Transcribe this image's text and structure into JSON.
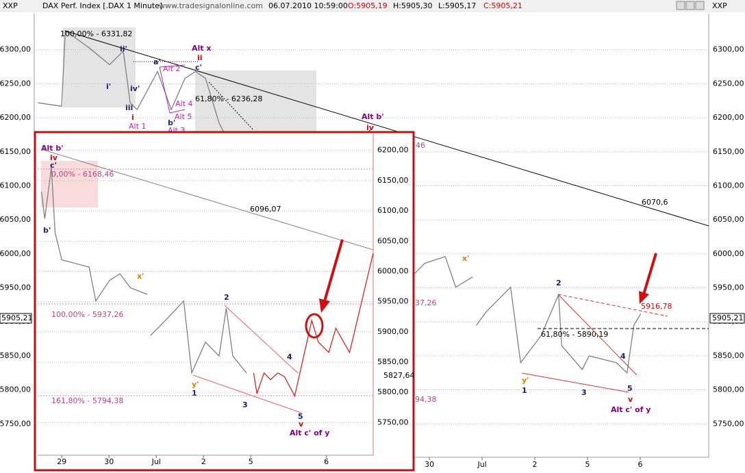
{
  "header": {
    "symbol": "XXP",
    "instrument": "DAX Perf. Index [.DAX  1 Minute]",
    "source": "www.tradesignalonline.com",
    "datetime": "06.07.2010 10:59:00",
    "open": "O:5905,19",
    "high": "H:5905,30",
    "low": "L:5905,17",
    "close": "C:5905,21"
  },
  "chart_data": [
    {
      "type": "line",
      "grid": true,
      "current_price": "5905,21",
      "xlim": [
        -7.5,
        5.3
      ],
      "ylim": [
        5701,
        6353
      ],
      "xticks": [
        {
          "value": 0,
          "label": "30"
        },
        {
          "value": 1,
          "label": "Jul"
        },
        {
          "value": 2,
          "label": "2"
        },
        {
          "value": 3,
          "label": "5"
        },
        {
          "value": 4,
          "label": "6"
        }
      ],
      "yticks": [
        {
          "value": 6300,
          "label": "6300,00"
        },
        {
          "value": 6250,
          "label": "6250,00"
        },
        {
          "value": 6200,
          "label": "6200,00"
        },
        {
          "value": 6150,
          "label": "6150,00"
        },
        {
          "value": 6100,
          "label": "6100,00"
        },
        {
          "value": 6050,
          "label": "6050,00"
        },
        {
          "value": 6000,
          "label": "6000,00"
        },
        {
          "value": 5950,
          "label": "5950,00"
        },
        {
          "value": 5900,
          "label": "5900,00"
        },
        {
          "value": 5850,
          "label": "5850,00"
        },
        {
          "value": 5800,
          "label": "5800,00"
        },
        {
          "value": 5750,
          "label": "5750,00"
        }
      ],
      "series": [
        {
          "color": "#7f7f7f",
          "x": [
            -7.43,
            -6.98,
            -6.91,
            -6.46,
            -6.07,
            -5.81,
            -5.68,
            -5.55,
            -5.16,
            -4.9,
            -4.64,
            -4.44,
            -4.25,
            -3.99,
            -3.86,
            -2.3,
            -1.13,
            -0.61,
            -0.28,
            -0.09,
            0.3,
            0.5,
            0.82,
            0.85,
            0.89,
            1.08,
            1.54,
            1.73,
            2.12,
            2.45,
            2.51,
            2.9,
            3.03,
            3.55,
            3.75,
            3.88,
            4.01
          ],
          "values": [
            6222,
            6217,
            6328,
            6303,
            6278,
            6298,
            6222,
            6212,
            6268,
            6212,
            6258,
            6268,
            6258,
            6192,
            6172,
            6071,
            6182,
            6041,
            5971,
            5986,
            5996,
            5951,
            5966,
            null,
            5895,
            5915,
            5951,
            5840,
            5880,
            5940,
            5865,
            5830,
            5850,
            5840,
            5825,
            5895,
            5912
          ]
        }
      ],
      "annotations": [
        "100,00% - 6331,82",
        "Alt x",
        "ii",
        "61,80% - 6236,28",
        "Alt b'",
        "iv",
        "6070,6",
        "46",
        "37,26",
        "94,38",
        "x'",
        "2",
        "61,80% - 5890,19",
        "5916,78",
        "4",
        "y'",
        "1",
        "3",
        "5",
        "v",
        "Alt c' of y",
        "Alt 1",
        "Alt 2",
        "Alt 3",
        "Alt 4",
        "Alt 5",
        "a'",
        "b'",
        "c'",
        "i'",
        "ii'",
        "iii",
        "iv'",
        "i"
      ]
    },
    {
      "type": "line",
      "grid": true,
      "xlim": [
        -0.51,
        6.59
      ],
      "ylim": [
        5696,
        6228
      ],
      "xticks": [
        {
          "value": 0,
          "label": "29"
        },
        {
          "value": 1,
          "label": "30"
        },
        {
          "value": 2,
          "label": "Jul"
        },
        {
          "value": 3,
          "label": "2"
        },
        {
          "value": 4,
          "label": "5"
        },
        {
          "value": 5.6,
          "label": "6"
        }
      ],
      "yticks": [
        {
          "value": 6200,
          "label": "6200,00"
        },
        {
          "value": 6150,
          "label": "6150,00"
        },
        {
          "value": 6100,
          "label": "6100,00"
        },
        {
          "value": 6050,
          "label": "6050,00"
        },
        {
          "value": 6000,
          "label": "6000,00"
        },
        {
          "value": 5950,
          "label": "5950,00"
        },
        {
          "value": 5900,
          "label": "5900,00"
        },
        {
          "value": 5850,
          "label": "5850,00"
        },
        {
          "value": 5800,
          "label": "5800,00"
        },
        {
          "value": 5750,
          "label": "5750,00"
        }
      ],
      "series": [
        {
          "color": "#7f7f7f",
          "x": [
            -0.43,
            -0.36,
            -0.22,
            -0.14,
            0,
            0.58,
            0.72,
            1.01,
            1.23,
            1.45,
            1.81,
            1.85,
            1.88,
            2.17,
            2.58,
            2.75,
            3.04,
            3.33,
            3.48,
            3.62,
            3.91
          ],
          "values": [
            6132,
            6087,
            6172,
            6064,
            6019,
            6007,
            5951,
            5985,
            5996,
            5973,
            5962,
            null,
            5894,
            5917,
            5951,
            5832,
            5883,
            5860,
            5939,
            5860,
            5832
          ]
        },
        {
          "color": "#e02020",
          "x": [
            4.06,
            4.13,
            4.28,
            4.42,
            4.57,
            4.71,
            4.93,
            5.29,
            5.43,
            5.65,
            5.8,
            6.09,
            6.59
          ],
          "values": [
            5832,
            5798,
            5832,
            5821,
            5832,
            5826,
            5794,
            5919,
            5883,
            5866,
            5906,
            5866,
            6030
          ]
        }
      ],
      "annotations": [
        "Alt b'",
        "iv",
        "c'",
        "0,00% - 6168,46",
        "b'",
        "6096,07",
        "x'",
        "100,00% - 5937,26",
        "2",
        "y'",
        "1",
        "3",
        "4",
        "161,80% - 5794,38",
        "5",
        "v",
        "Alt c' of y",
        "5827,64"
      ]
    }
  ]
}
